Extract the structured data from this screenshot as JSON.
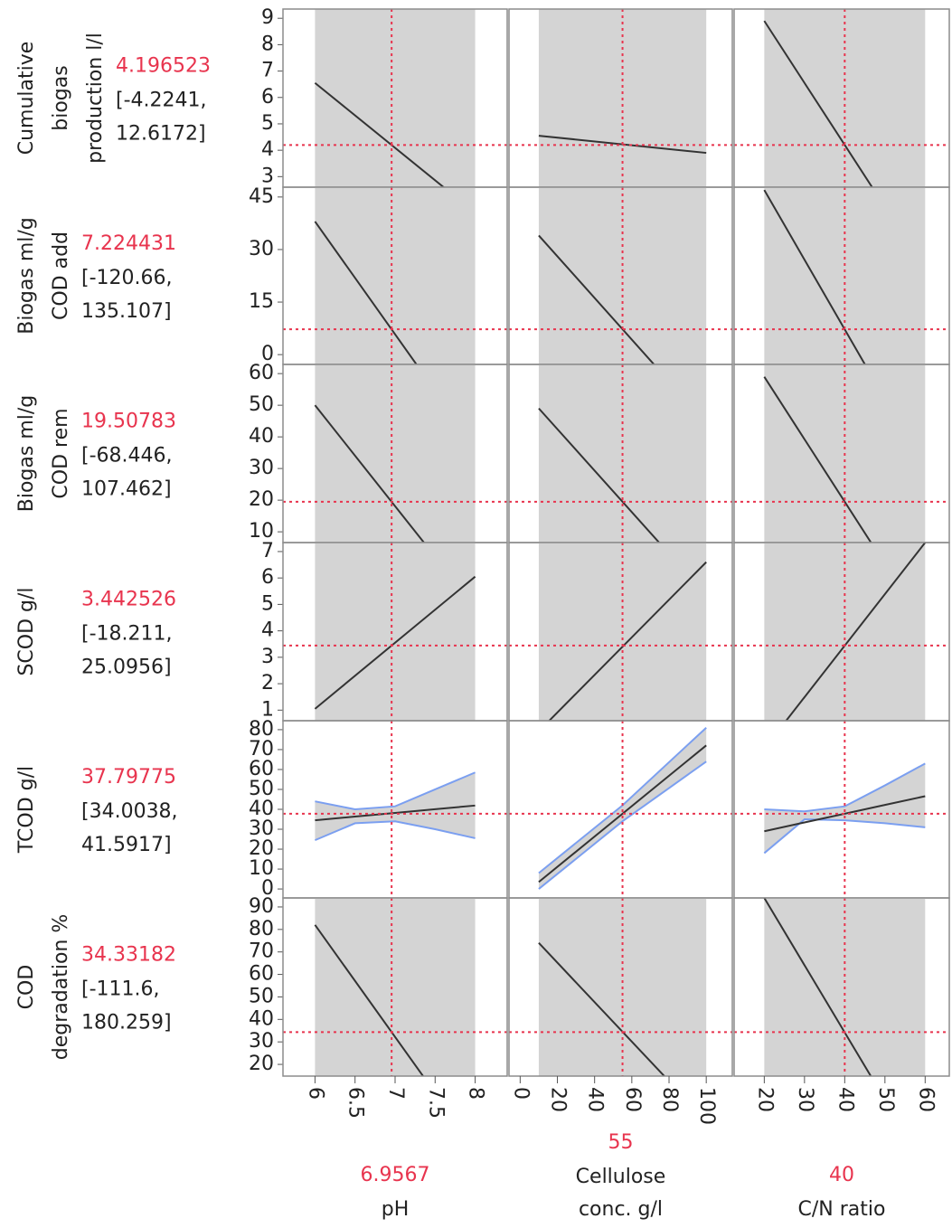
{
  "chart_data": {
    "type": "profiler",
    "colors": {
      "band": "#d4d4d4",
      "line": "#333333",
      "reference": "#e8344e",
      "ci": "#7b9ff0",
      "border": "#8c8c8c"
    },
    "factors": [
      {
        "name_lines": [
          "pH"
        ],
        "current": 6.9567,
        "xlim": [
          5.6,
          8.4
        ],
        "xticks": [
          6,
          6.5,
          7,
          7.5,
          8
        ],
        "data_range": [
          6,
          8
        ]
      },
      {
        "name_lines": [
          "Cellulose",
          "conc. g/l"
        ],
        "current": 55,
        "xlim": [
          -6,
          114
        ],
        "xticks": [
          0,
          20,
          40,
          60,
          80,
          100
        ],
        "data_range": [
          10,
          100
        ]
      },
      {
        "name_lines": [
          "C/N ratio"
        ],
        "current": 40,
        "xlim": [
          12.5,
          66
        ],
        "xticks": [
          20,
          30,
          40,
          50,
          60
        ],
        "data_range": [
          20,
          60
        ]
      }
    ],
    "responses": [
      {
        "name_lines": [
          "Cumulative",
          "biogas",
          "production l/l"
        ],
        "current": 4.196523,
        "interval": [
          "[-4.2241,",
          "12.6172]"
        ],
        "ylim": [
          2.6,
          9.35
        ],
        "yticks": [
          3,
          4,
          5,
          6,
          7,
          8,
          9
        ],
        "curves": [
          {
            "x": [
              6,
              8
            ],
            "y": [
              6.55,
              1.63
            ]
          },
          {
            "x": [
              10,
              100
            ],
            "y": [
              4.55,
              3.9
            ]
          },
          {
            "x": [
              20,
              60
            ],
            "y": [
              8.9,
              -0.5
            ]
          }
        ]
      },
      {
        "name_lines": [
          "Biogas ml/g",
          "COD add"
        ],
        "current": 7.224431,
        "interval": [
          "[-120.66,",
          "135.107]"
        ],
        "ylim": [
          -2.8,
          47.8
        ],
        "yticks": [
          0,
          15,
          30,
          45
        ],
        "curves": [
          {
            "x": [
              6,
              8
            ],
            "y": [
              38,
              -26.4
            ]
          },
          {
            "x": [
              10,
              100
            ],
            "y": [
              34,
              -19.5
            ]
          },
          {
            "x": [
              20,
              60
            ],
            "y": [
              47,
              -32.6
            ]
          }
        ]
      },
      {
        "name_lines": [
          "Biogas ml/g",
          "COD rem"
        ],
        "current": 19.50783,
        "interval": [
          "[-68.446,",
          "107.462]"
        ],
        "ylim": [
          6.6,
          62.9
        ],
        "yticks": [
          10,
          20,
          30,
          40,
          50,
          60
        ],
        "curves": [
          {
            "x": [
              6,
              8
            ],
            "y": [
              50,
              -13.8
            ]
          },
          {
            "x": [
              10,
              100
            ],
            "y": [
              49,
              -10
            ]
          },
          {
            "x": [
              20,
              60
            ],
            "y": [
              59,
              -20
            ]
          }
        ]
      },
      {
        "name_lines": [
          "SCOD g/l"
        ],
        "current": 3.442526,
        "interval": [
          "[-18.211,",
          "25.0956]"
        ],
        "ylim": [
          0.6,
          7.34
        ],
        "yticks": [
          1,
          2,
          3,
          4,
          5,
          6,
          7
        ],
        "curves": [
          {
            "x": [
              6,
              8
            ],
            "y": [
              1.05,
              6.05
            ]
          },
          {
            "x": [
              10,
              100
            ],
            "y": [
              0.2,
              6.6
            ]
          },
          {
            "x": [
              20,
              60
            ],
            "y": [
              -0.46,
              7.34
            ]
          }
        ]
      },
      {
        "name_lines": [
          "TCOD g/l"
        ],
        "current": 37.79775,
        "interval": [
          "[34.0038,",
          "41.5917]"
        ],
        "ylim": [
          -4.5,
          84.5
        ],
        "yticks": [
          0,
          10,
          20,
          30,
          40,
          50,
          60,
          70,
          80
        ],
        "curves": [
          {
            "x": [
              6,
              6.5,
              7,
              7.5,
              8
            ],
            "y": [
              34.5,
              36.35,
              38.2,
              40.05,
              41.9
            ],
            "lower": [
              24.5,
              33,
              34,
              30,
              25.5
            ],
            "upper": [
              44,
              40,
              41.5,
              50,
              58.5
            ]
          },
          {
            "x": [
              10,
              55,
              100
            ],
            "y": [
              3.5,
              37.8,
              72.1
            ],
            "lower": [
              0,
              34,
              64
            ],
            "upper": [
              8,
              42,
              81
            ]
          },
          {
            "x": [
              20,
              30,
              40,
              50,
              60
            ],
            "y": [
              29,
              33.4,
              37.8,
              42.2,
              46.6
            ],
            "lower": [
              18,
              35,
              34.5,
              33,
              31
            ],
            "upper": [
              40,
              39,
              41.5,
              52,
              63
            ]
          }
        ]
      },
      {
        "name_lines": [
          "COD",
          "degradation %"
        ],
        "current": 34.33182,
        "interval": [
          "[-111.6,",
          "180.259]"
        ],
        "ylim": [
          14.8,
          94
        ],
        "yticks": [
          20,
          30,
          40,
          50,
          60,
          70,
          80,
          90
        ],
        "curves": [
          {
            "x": [
              6,
              8
            ],
            "y": [
              82,
              -17.6
            ]
          },
          {
            "x": [
              10,
              100
            ],
            "y": [
              74,
              -5
            ]
          },
          {
            "x": [
              20,
              60
            ],
            "y": [
              94,
              -25.6
            ]
          }
        ]
      }
    ]
  }
}
